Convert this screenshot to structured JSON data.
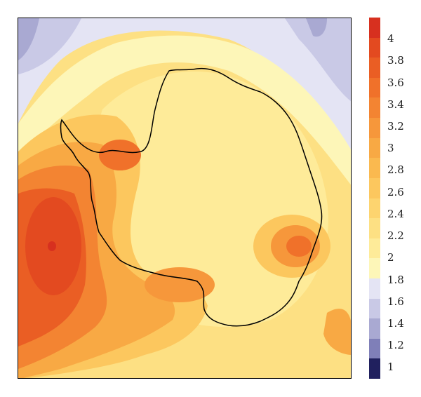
{
  "colorbar": {
    "ticks": [
      {
        "label": "4",
        "value": 4.0
      },
      {
        "label": "3.8",
        "value": 3.8
      },
      {
        "label": "3.6",
        "value": 3.6
      },
      {
        "label": "3.4",
        "value": 3.4
      },
      {
        "label": "3.2",
        "value": 3.2
      },
      {
        "label": "3",
        "value": 3.0
      },
      {
        "label": "2.8",
        "value": 2.8
      },
      {
        "label": "2.6",
        "value": 2.6
      },
      {
        "label": "2.4",
        "value": 2.4
      },
      {
        "label": "2.2",
        "value": 2.2
      },
      {
        "label": "2",
        "value": 2.0
      },
      {
        "label": "1.8",
        "value": 1.8
      },
      {
        "label": "1.6",
        "value": 1.6
      },
      {
        "label": "1.4",
        "value": 1.4
      },
      {
        "label": "1.2",
        "value": 1.2
      },
      {
        "label": "1",
        "value": 1.0
      }
    ],
    "colors": [
      "#d7301f",
      "#e34a20",
      "#ea5e24",
      "#f0712a",
      "#f38432",
      "#f6973b",
      "#f8a944",
      "#fab94f",
      "#fcc75e",
      "#fdd46f",
      "#fde083",
      "#feeb99",
      "#fdf6b8",
      "#e4e4f4",
      "#c9c9e6",
      "#a9a9d2",
      "#7f7fb8",
      "#20205e"
    ],
    "range": [
      0.9,
      4.2
    ]
  },
  "map": {
    "region": "Antarctica",
    "coastline_color": "#000000"
  }
}
